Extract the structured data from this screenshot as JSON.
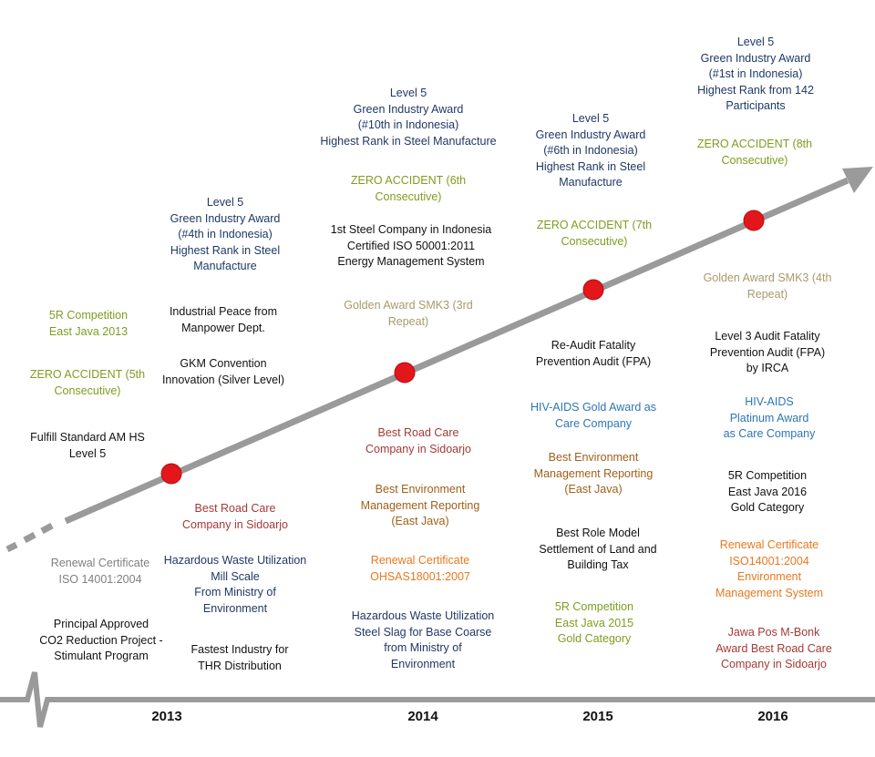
{
  "years": [
    "2013",
    "2014",
    "2015",
    "2016"
  ],
  "labels": {
    "y2016_gia": "Level 5\nGreen Industry Award\n(#1st in Indonesia)\nHighest Rank from 142\nParticipants",
    "y2016_zero": "ZERO ACCIDENT (8th\nConsecutive)",
    "y2014_gia": "Level 5\nGreen Industry Award\n(#10th in Indonesia)\nHighest Rank in Steel Manufacture",
    "y2014_zero": "ZERO ACCIDENT (6th\nConsecutive)",
    "y2014_iso": "1st Steel Company in Indonesia\nCertified ISO 50001:2011\nEnergy Management System",
    "y2014_smk3": "Golden Award SMK3 (3rd\nRepeat)",
    "y2015_gia": "Level 5\nGreen Industry Award\n(#6th in Indonesia)\nHighest Rank in Steel\nManufacture",
    "y2015_zero": "ZERO ACCIDENT (7th\nConsecutive)",
    "y2013_gia": "Level 5\nGreen Industry Award\n(#4th in Indonesia)\nHighest Rank in Steel\nManufacture",
    "y2013_peace": "Industrial Peace from\nManpower Dept.",
    "y2013_gkm": "GKM Convention\nInnovation (Silver Level)",
    "y2013_5r": "5R Competition\nEast Java 2013",
    "y2013_zero": "ZERO ACCIDENT (5th\nConsecutive)",
    "y2013_amhs": "Fulfill Standard AM HS\nLevel 5",
    "y2016_smk3": "Golden Award SMK3 (4th\nRepeat)",
    "y2016_fpa": "Level 3 Audit Fatality\nPrevention Audit (FPA)\nby IRCA",
    "y2015_fpa": "Re-Audit Fatality\nPrevention Audit (FPA)",
    "y2015_hiv": "HIV-AIDS Gold Award as\nCare Company",
    "y2016_hiv": "HIV-AIDS\nPlatinum Award\nas Care Company",
    "y2014_road": "Best Road Care\nCompany in Sidoarjo",
    "y2015_env": "Best Environment\nManagement Reporting\n(East Java)",
    "y2016_5r": "5R Competition\nEast Java 2016\nGold Category",
    "y2014_env": "Best Environment\nManagement Reporting\n(East Java)",
    "y2013_road": "Best Road Care\nCompany in Sidoarjo",
    "y2015_tax": "Best Role Model\nSettlement of Land and\nBuilding Tax",
    "y2016_iso": "Renewal Certificate\nISO14001:2004\nEnvironment\nManagement System",
    "y2013_renew": "Renewal Certificate\nISO 14001:2004",
    "y2013_haz": "Hazardous Waste Utilization\nMill Scale\nFrom Ministry of\nEnvironment",
    "y2014_ohsas": "Renewal Certificate\nOHSAS18001:2007",
    "y2015_5r": "5R Competition\nEast Java 2015\nGold Category",
    "y2013_co2": "Principal Approved\nCO2 Reduction Project  -\nStimulant  Program",
    "y2013_thr": "Fastest Industry for\nTHR Distribution",
    "y2014_haz": "Hazardous Waste Utilization\nSteel Slag for Base Coarse\nfrom Ministry of\nEnvironment",
    "y2016_jawa": "Jawa Pos M-Bonk\nAward Best Road Care\nCompany in Sidoarjo"
  },
  "colors": {
    "line": "#9a9a9a",
    "milestone": "#e3161b"
  }
}
